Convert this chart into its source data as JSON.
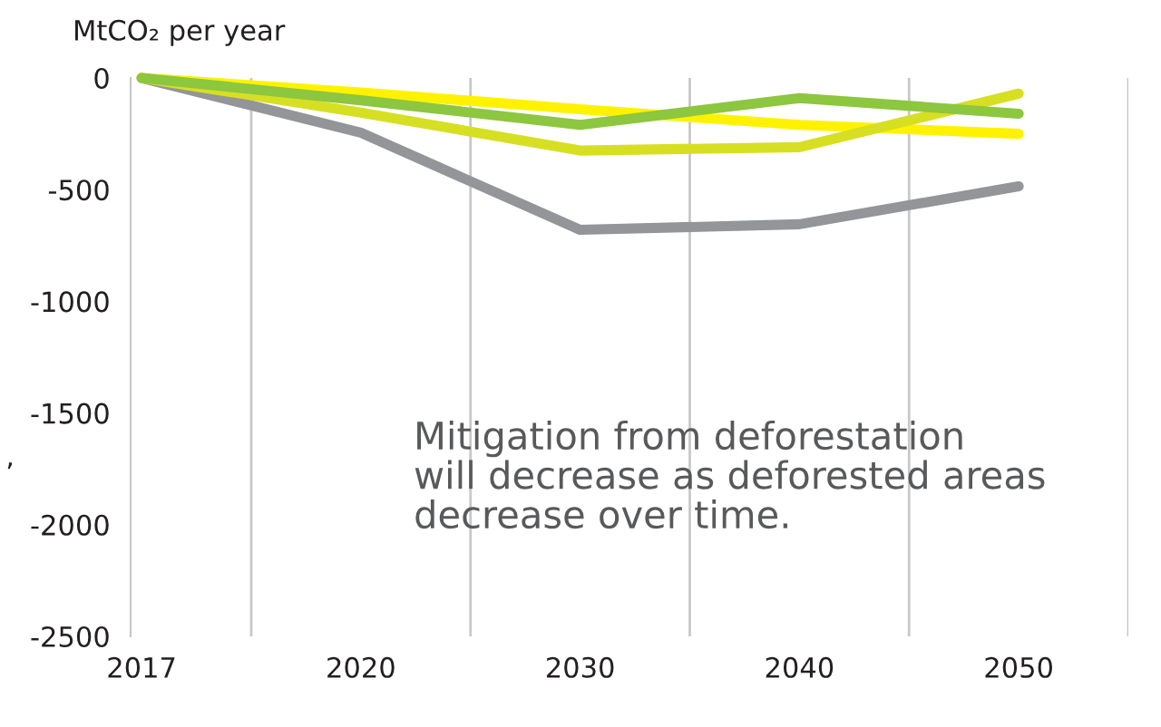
{
  "chart_data": {
    "type": "line",
    "ylabel": "MtCO₂ per year",
    "categories": [
      "2017",
      "2020",
      "2030",
      "2040",
      "2050"
    ],
    "series": [
      {
        "color": "#939598",
        "values": [
          0,
          -245,
          -680,
          -655,
          -485
        ]
      },
      {
        "color": "#fff200",
        "values": [
          0,
          -65,
          -140,
          -210,
          -250
        ]
      },
      {
        "color": "#d7df23",
        "values": [
          0,
          -155,
          -325,
          -310,
          -70
        ]
      },
      {
        "color": "#8dc63f",
        "values": [
          0,
          -100,
          -210,
          -90,
          -160
        ]
      }
    ],
    "ylim": [
      -2500,
      0
    ],
    "yticks": [
      {
        "value": 0,
        "label": "0"
      },
      {
        "value": -500,
        "label": "-500"
      },
      {
        "value": -1000,
        "label": "-1000"
      },
      {
        "value": -1500,
        "label": "-1500"
      },
      {
        "value": -2000,
        "label": "-2000"
      },
      {
        "value": -2500,
        "label": "-2500"
      }
    ],
    "grid": "x",
    "legend": false,
    "marker": "none",
    "line_style": "solid",
    "annotations": [
      "Mitigation from deforestation\nwill decrease as deforested areas\ndecrease over time.",
      "’"
    ]
  }
}
